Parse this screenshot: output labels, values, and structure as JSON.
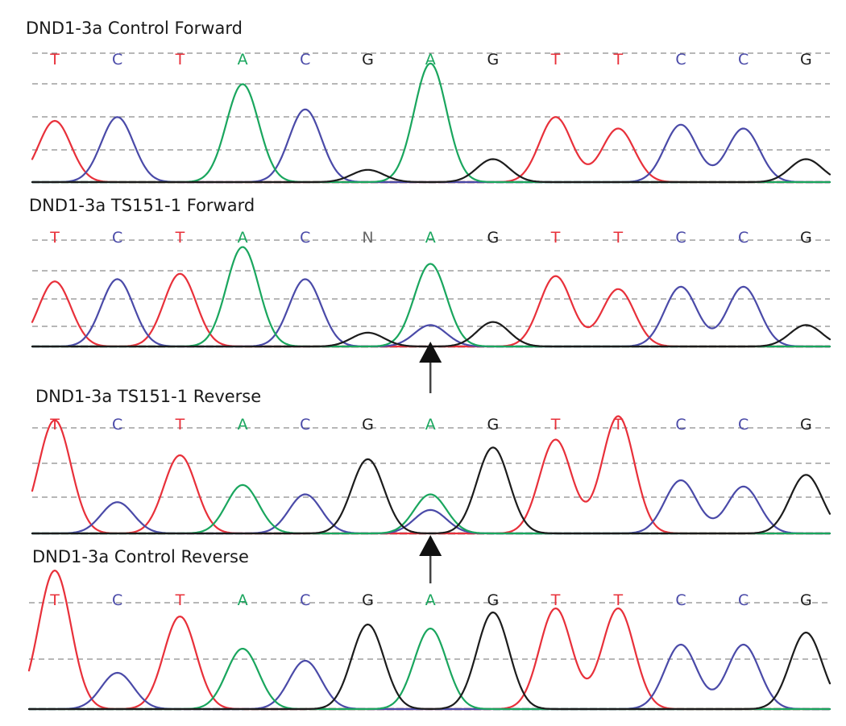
{
  "chart_data": [
    {
      "type": "line",
      "title": "DND1-3a Control Forward",
      "bases": [
        "T",
        "C",
        "T",
        "A",
        "C",
        "G",
        "A",
        "G",
        "T",
        "T",
        "C",
        "C",
        "G"
      ],
      "series": [
        {
          "base": "T",
          "values": [
            0.8,
            0,
            0,
            0,
            0,
            0,
            0,
            0,
            0.85,
            0.7,
            0,
            0,
            0
          ]
        },
        {
          "base": "C",
          "values": [
            0,
            0.85,
            0,
            0,
            0.95,
            0,
            0,
            0,
            0,
            0,
            0.75,
            0.7,
            0
          ]
        },
        {
          "base": "A",
          "values": [
            0,
            0,
            0,
            1.28,
            0,
            0,
            1.55,
            0,
            0,
            0,
            0,
            0,
            0
          ]
        },
        {
          "base": "G",
          "values": [
            0,
            0,
            0,
            0,
            0,
            0.16,
            0,
            0.3,
            0,
            0,
            0,
            0,
            0.3
          ]
        }
      ]
    },
    {
      "type": "line",
      "title": "DND1-3a TS151-1 Forward",
      "bases": [
        "T",
        "C",
        "T",
        "A",
        "C",
        "N",
        "A",
        "G",
        "T",
        "T",
        "C",
        "C",
        "G"
      ],
      "series": [
        {
          "base": "T",
          "values": [
            0.85,
            0,
            0.95,
            0,
            0,
            0,
            0,
            0,
            0.92,
            0.75,
            0,
            0,
            0
          ]
        },
        {
          "base": "C",
          "values": [
            0,
            0.88,
            0,
            0,
            0.88,
            0,
            0.28,
            0,
            0,
            0,
            0.78,
            0.78,
            0
          ]
        },
        {
          "base": "A",
          "values": [
            0,
            0,
            0,
            1.3,
            0,
            0,
            1.08,
            0,
            0,
            0,
            0,
            0,
            0
          ]
        },
        {
          "base": "G",
          "values": [
            0,
            0,
            0,
            0,
            0,
            0.18,
            0,
            0.32,
            0,
            0,
            0,
            0,
            0.28
          ]
        }
      ]
    },
    {
      "type": "line",
      "title": "DND1-3a TS151-1 Reverse",
      "bases": [
        "T",
        "C",
        "T",
        "A",
        "C",
        "G",
        "A",
        "G",
        "T",
        "T",
        "C",
        "C",
        "G"
      ],
      "series": [
        {
          "base": "T",
          "values": [
            1.45,
            0,
            1.0,
            0,
            0,
            0,
            0,
            0,
            1.2,
            1.5,
            0,
            0,
            0
          ]
        },
        {
          "base": "C",
          "values": [
            0,
            0.4,
            0,
            0,
            0.5,
            0,
            0.3,
            0,
            0,
            0,
            0.68,
            0.6,
            0
          ]
        },
        {
          "base": "A",
          "values": [
            0,
            0,
            0,
            0.62,
            0,
            0,
            0.5,
            0,
            0,
            0,
            0,
            0,
            0
          ]
        },
        {
          "base": "G",
          "values": [
            0,
            0,
            0,
            0,
            0,
            0.95,
            0,
            1.1,
            0,
            0,
            0,
            0,
            0.75
          ]
        }
      ]
    },
    {
      "type": "line",
      "title": "DND1-3a Control Reverse",
      "bases": [
        "T",
        "C",
        "T",
        "A",
        "C",
        "G",
        "A",
        "G",
        "T",
        "T",
        "C",
        "C",
        "G"
      ],
      "series": [
        {
          "base": "T",
          "values": [
            1.72,
            0,
            1.15,
            0,
            0,
            0,
            0,
            0,
            1.25,
            1.25,
            0,
            0,
            0
          ]
        },
        {
          "base": "C",
          "values": [
            0,
            0.45,
            0,
            0,
            0.6,
            0,
            0,
            0,
            0,
            0,
            0.8,
            0.8,
            0
          ]
        },
        {
          "base": "A",
          "values": [
            0,
            0,
            0,
            0.75,
            0,
            0,
            1.0,
            0,
            0,
            0,
            0,
            0,
            0
          ]
        },
        {
          "base": "G",
          "values": [
            0,
            0,
            0,
            0,
            0,
            1.05,
            0,
            1.2,
            0,
            0,
            0,
            0,
            0.95
          ]
        }
      ]
    }
  ],
  "colors": {
    "T": "#e8303a",
    "C": "#4a4aa8",
    "A": "#1aa65e",
    "G": "#1c1c1c",
    "N": "#666666",
    "grid": "#8c8c8c",
    "arrow": "#111111"
  }
}
